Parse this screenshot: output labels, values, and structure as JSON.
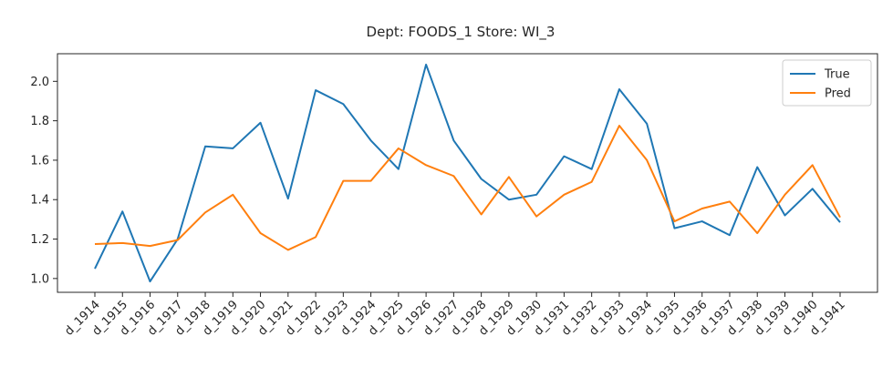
{
  "chart_data": {
    "type": "line",
    "title": "Dept: FOODS_1      Store: WI_3",
    "xlabel": "",
    "ylabel": "",
    "categories": [
      "d_1914",
      "d_1915",
      "d_1916",
      "d_1917",
      "d_1918",
      "d_1919",
      "d_1920",
      "d_1921",
      "d_1922",
      "d_1923",
      "d_1924",
      "d_1925",
      "d_1926",
      "d_1927",
      "d_1928",
      "d_1929",
      "d_1930",
      "d_1931",
      "d_1932",
      "d_1933",
      "d_1934",
      "d_1935",
      "d_1936",
      "d_1937",
      "d_1938",
      "d_1939",
      "d_1940",
      "d_1941"
    ],
    "ylim": [
      0.93,
      2.14
    ],
    "yticks": [
      1.0,
      1.2,
      1.4,
      1.6,
      1.8,
      2.0
    ],
    "ytick_labels": [
      "1.0",
      "1.2",
      "1.4",
      "1.6",
      "1.8",
      "2.0"
    ],
    "grid": false,
    "legend_position": "top-right",
    "series": [
      {
        "name": "True",
        "color": "#1f77b4",
        "values": [
          1.05,
          1.34,
          0.985,
          1.2,
          1.67,
          1.66,
          1.79,
          1.405,
          1.955,
          1.885,
          1.7,
          1.555,
          2.085,
          1.7,
          1.505,
          1.4,
          1.425,
          1.62,
          1.555,
          1.96,
          1.785,
          1.255,
          1.29,
          1.22,
          1.565,
          1.32,
          1.455,
          1.285
        ]
      },
      {
        "name": "Pred",
        "color": "#ff7f0e",
        "values": [
          1.175,
          1.18,
          1.165,
          1.195,
          1.335,
          1.425,
          1.23,
          1.145,
          1.21,
          1.495,
          1.495,
          1.66,
          1.575,
          1.52,
          1.325,
          1.515,
          1.315,
          1.425,
          1.49,
          1.775,
          1.6,
          1.29,
          1.355,
          1.39,
          1.23,
          1.425,
          1.575,
          1.31
        ]
      }
    ]
  }
}
